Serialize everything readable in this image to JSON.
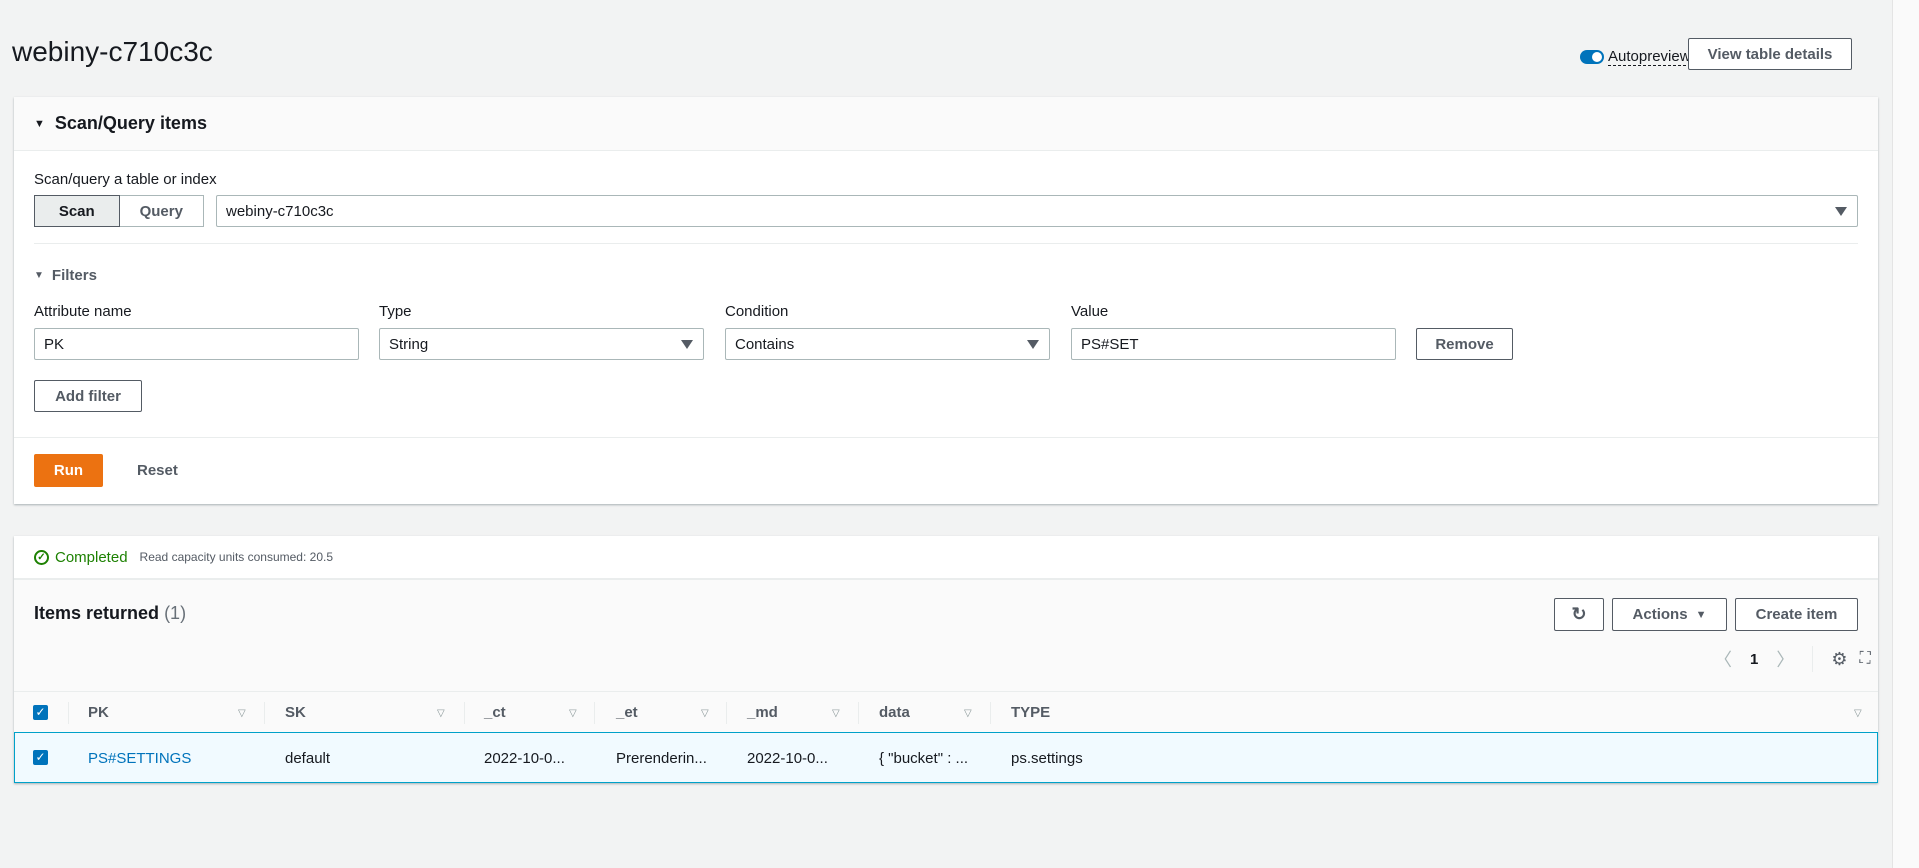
{
  "page": {
    "title": "webiny-c710c3c",
    "autopreview_label": "Autopreview",
    "autopreview_on": true,
    "view_table_details": "View table details"
  },
  "scan_panel": {
    "header": "Scan/Query items",
    "mode_label": "Scan/query a table or index",
    "modes": [
      "Scan",
      "Query"
    ],
    "selected_mode": "Scan",
    "table_select": "webiny-c710c3c",
    "filters_label": "Filters",
    "filter_headers": {
      "attribute": "Attribute name",
      "type": "Type",
      "condition": "Condition",
      "value": "Value"
    },
    "filter": {
      "attribute": "PK",
      "type": "String",
      "condition": "Contains",
      "value": "PS#SET"
    },
    "remove": "Remove",
    "add_filter": "Add filter",
    "run": "Run",
    "reset": "Reset"
  },
  "results": {
    "status": "Completed",
    "capacity": "Read capacity units consumed: 20.5",
    "title": "Items returned",
    "count": "(1)",
    "actions": "Actions",
    "create_item": "Create item",
    "page": "1",
    "columns": [
      "PK",
      "SK",
      "_ct",
      "_et",
      "_md",
      "data",
      "TYPE"
    ],
    "rows": [
      {
        "selected": true,
        "cells": [
          "PS#SETTINGS",
          "default",
          "2022-10-0...",
          "Prerenderin...",
          "2022-10-0...",
          "{ \"bucket\" : ...",
          "ps.settings"
        ]
      }
    ]
  },
  "colors": {
    "accent": "#0073bb",
    "run": "#ec7211",
    "success": "#1d8102",
    "row_selected": "#f1faff",
    "row_border": "#00a1c9"
  }
}
